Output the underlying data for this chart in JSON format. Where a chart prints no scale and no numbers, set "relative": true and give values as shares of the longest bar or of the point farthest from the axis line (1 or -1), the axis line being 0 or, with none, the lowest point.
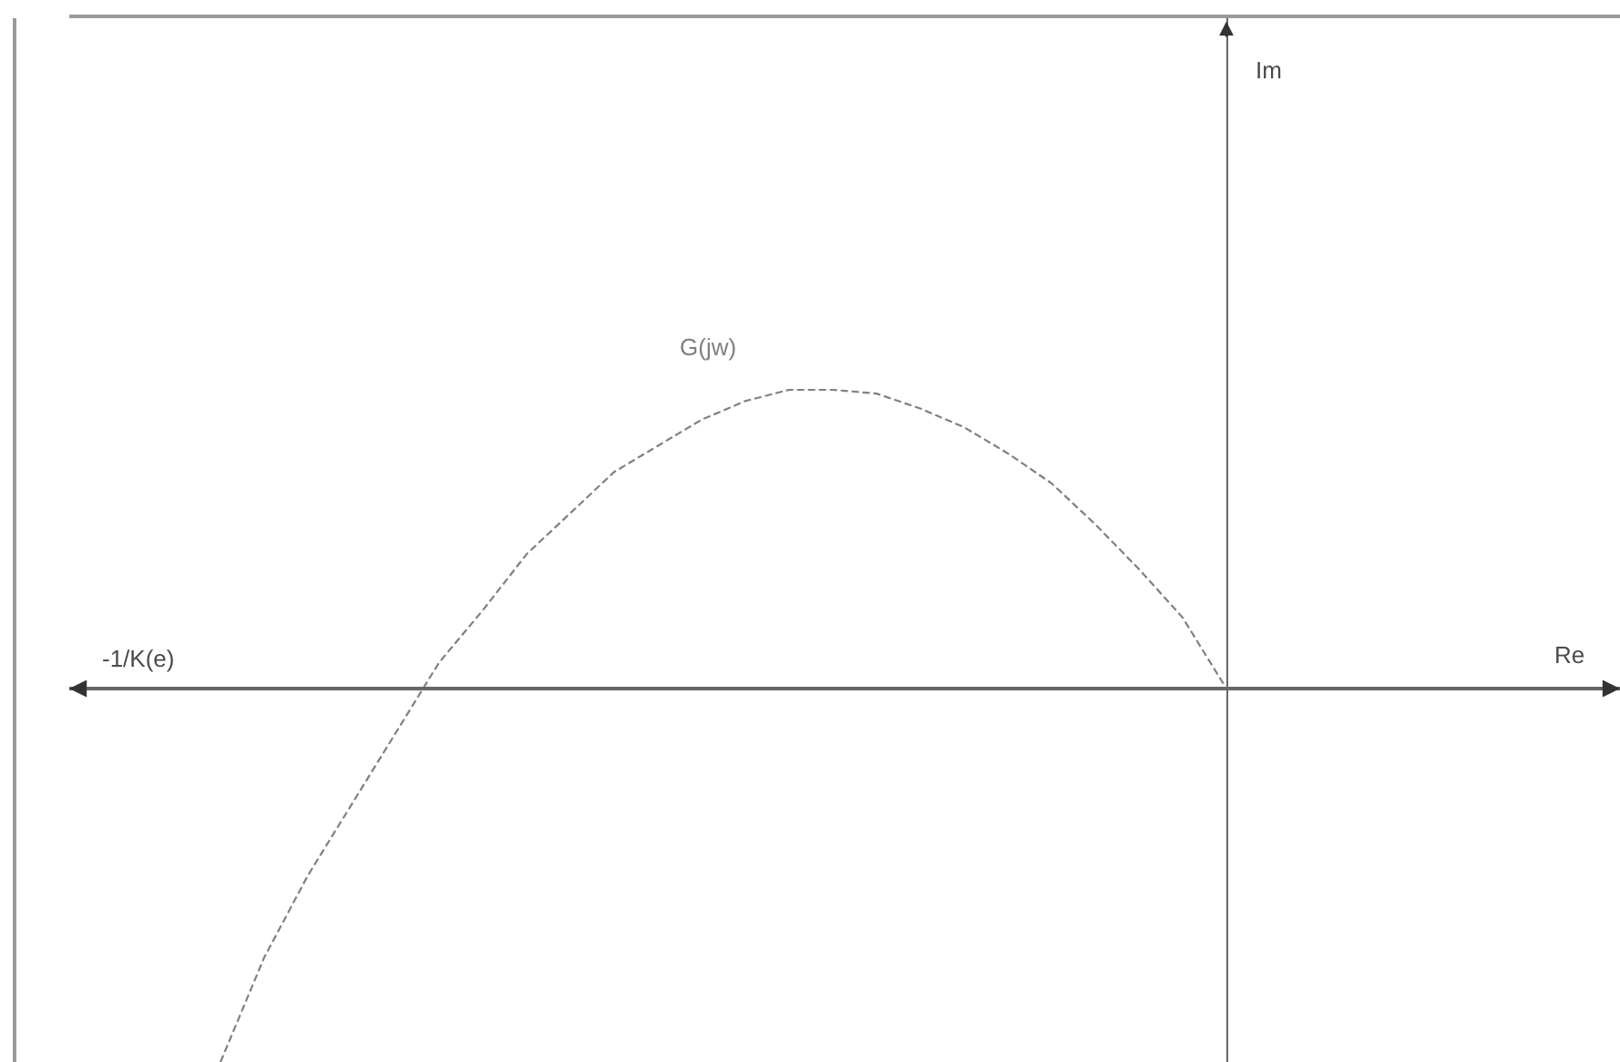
{
  "chart_data": {
    "type": "line",
    "relative": true,
    "annotations": [
      "-1/K(e)",
      "Re",
      "Im"
    ],
    "legend": false,
    "line_style": "dashed",
    "categories": [
      null,
      null,
      null,
      null,
      null,
      null,
      null,
      null,
      null,
      null,
      null,
      null,
      null,
      null,
      null,
      null,
      null,
      null,
      null,
      null,
      null,
      null,
      null,
      null
    ],
    "series": [
      {
        "name": "G(jw)",
        "color": "#808080",
        "values": [
          -1,
          -0.72,
          -0.5,
          -0.31,
          -0.12,
          0.07,
          0.21,
          0.36,
          0.47,
          0.58,
          0.65,
          0.72,
          0.77,
          0.8,
          0.8,
          0.79,
          0.75,
          0.7,
          0.63,
          0.55,
          0.44,
          0.32,
          0.19,
          0
        ]
      }
    ]
  }
}
